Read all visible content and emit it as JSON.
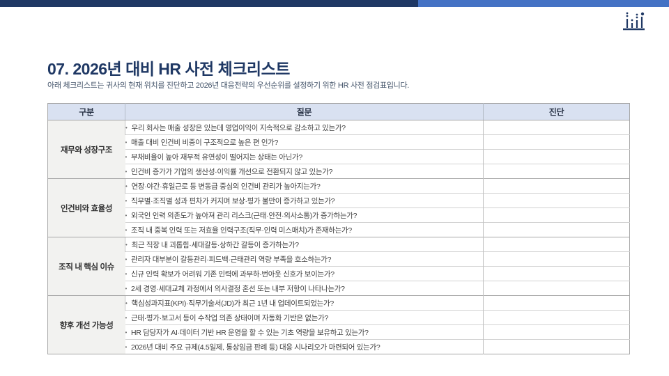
{
  "page": {
    "title": "07. 2026년 대비 HR 사전 체크리스트",
    "subtitle": "아래 체크리스트는 귀사의 현재 위치를 진단하고 2026년 대응전략의 우선순위를 설정하기 위한 HR 사전 점검표입니다."
  },
  "colors": {
    "topbar_navy": "#1f3864",
    "topbar_blue": "#4472c4",
    "title_navy": "#1f3864",
    "table_header_bg": "#d9e1f1",
    "category_cell_bg": "#f2f2f0"
  },
  "logo": {
    "icon": "abacus-bar-chart-logo"
  },
  "table": {
    "headers": [
      "구분",
      "질문",
      "진단"
    ],
    "groups": [
      {
        "category": "재무와 성장구조",
        "questions": [
          "우리 회사는 매출 성장은 있는데 영업이익이 지속적으로 감소하고 있는가?",
          "매출 대비 인건비 비중이 구조적으로 높은 편 인가?",
          "부채비율이 높아 재무적 유연성이 떨어지는 상태는 아닌가?",
          "인건비 증가가 기업의 생산성·이익률 개선으로 전환되지 않고 있는가?"
        ]
      },
      {
        "category": "인건비와 효율성",
        "questions": [
          "연장·야간·휴일근로 등 변동급 중심의 인건비 관리가 높아지는가?",
          "직무별·조직별 성과 편차가 커지며 보상·평가 불만이 증가하고 있는가?",
          "외국인 인력 의존도가 높아져 관리 리스크(근태·안전·의사소통)가 증가하는가?",
          "조직 내 중복 인력 또는 저효율 인력구조(직무·인력 미스매치)가 존재하는가?"
        ]
      },
      {
        "category": "조직 내 핵심 이슈",
        "questions": [
          "최근 직장 내 괴롭힘·세대갈등·상하간 갈등이 증가하는가?",
          "관리자 대부분이 갈등관리·피드백·근태관리 역량 부족을 호소하는가?",
          "신규 인력 확보가 어려워 기존 인력에 과부하·번아웃 신호가 보이는가?",
          "2세 경영·세대교체 과정에서 의사결정 혼선 또는 내부 저항이 나타나는가?"
        ]
      },
      {
        "category": "향후 개선 가능성",
        "questions": [
          "핵심성과지표(KPI)·직무기술서(JD)가 최근 1년 내 업데이트되었는가?",
          "근태·평가·보고서 등이 수작업 의존 상태이며 자동화 기반은 없는가?",
          "HR 담당자가 AI·데이터 기반 HR 운영을 할 수 있는 기초 역량을 보유하고 있는가?",
          "2026년 대비 주요 규제(4.5일제, 통상임금 판례 등) 대응 시나리오가 마련되어 있는가?"
        ]
      }
    ]
  }
}
